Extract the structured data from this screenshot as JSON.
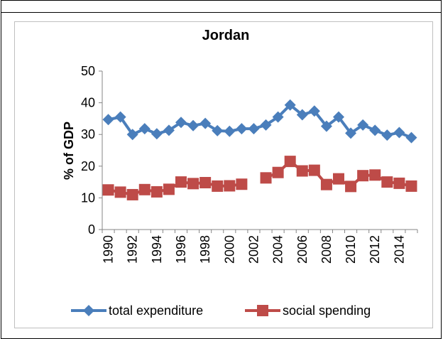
{
  "chart_data": {
    "type": "line",
    "title": "Jordan",
    "y_label": "% of GDP",
    "categories": [
      "1990",
      null,
      "1992",
      null,
      "1994",
      null,
      "1996",
      null,
      "1998",
      null,
      "2000",
      null,
      "2002",
      null,
      "2004",
      null,
      "2006",
      null,
      "2008",
      null,
      "2010",
      null,
      "2012",
      null,
      "2014",
      null
    ],
    "series": [
      {
        "name": "total expenditure",
        "color": "#4a7ebb",
        "marker": "diamond",
        "values": [
          34.7,
          35.5,
          30,
          31.8,
          30.2,
          31.3,
          33.8,
          32.8,
          33.5,
          31.2,
          31,
          31.8,
          31.8,
          33,
          35.5,
          39.3,
          36.2,
          37.4,
          32.6,
          35.5,
          30.4,
          33,
          31.3,
          29.8,
          30.6,
          29
        ]
      },
      {
        "name": "social spending",
        "color": "#be4b48",
        "marker": "square",
        "values": [
          12.5,
          11.8,
          11,
          12.6,
          11.9,
          12.7,
          15,
          14.5,
          14.8,
          13.7,
          13.8,
          14.3,
          null,
          16.3,
          18,
          21.5,
          18.5,
          18.7,
          14.2,
          16,
          13.6,
          17,
          17.2,
          15,
          14.6,
          13.7
        ]
      }
    ],
    "ylim": [
      0,
      50
    ],
    "yticks": [
      0,
      10,
      20,
      30,
      40,
      50
    ],
    "grid": false,
    "legend": "bottom"
  }
}
